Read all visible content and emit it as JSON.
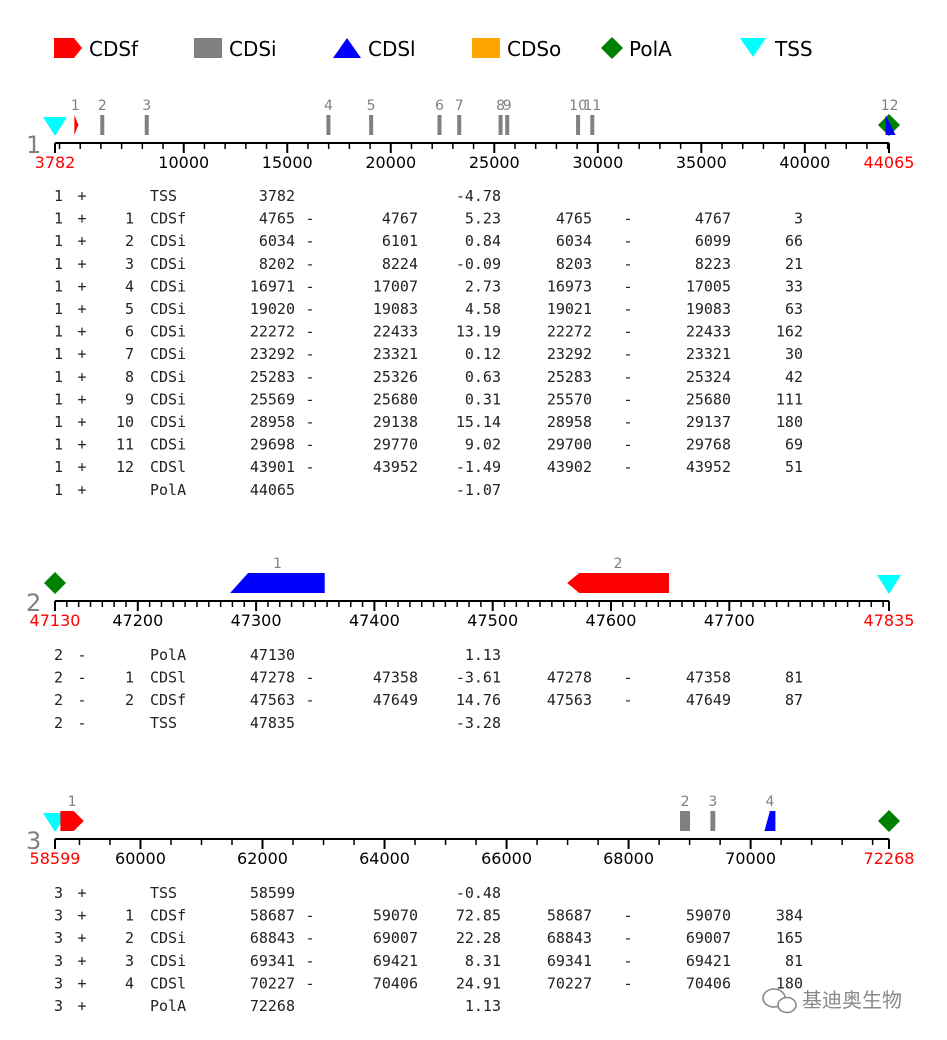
{
  "legend": [
    {
      "label": "CDSf",
      "icon": "cdsf-arrow-icon",
      "color": "#ff0000"
    },
    {
      "label": "CDSi",
      "icon": "cdsi-square-icon",
      "color": "#808080"
    },
    {
      "label": "CDSl",
      "icon": "cdsl-triangle-icon",
      "color": "#0000ff"
    },
    {
      "label": "CDSo",
      "icon": "cdso-square-icon",
      "color": "#ffa500"
    },
    {
      "label": "PolA",
      "icon": "pola-diamond-icon",
      "color": "#008000"
    },
    {
      "label": "TSS",
      "icon": "tss-triangle-icon",
      "color": "#00ffff"
    }
  ],
  "colors": {
    "tss": "#00ffff",
    "pola": "#008000",
    "cdsf": "#ff0000",
    "cdsi": "#808080",
    "cdsl": "#0000ff",
    "range_label": "#ff0000",
    "axis": "#000000",
    "track_id": "#808080"
  },
  "tracks": [
    {
      "id": "1",
      "start": 3782,
      "end": 44065,
      "start_label": "3782",
      "end_label": "44065",
      "ticks": [
        10000,
        15000,
        20000,
        25000,
        30000,
        35000,
        40000
      ],
      "tick_labels": [
        "10000",
        "15000",
        "20000",
        "25000",
        "30000",
        "35000",
        "40000"
      ],
      "minor_step": 1000,
      "markers": [
        {
          "kind": "TSS",
          "pos": 3782
        },
        {
          "kind": "PolA",
          "pos": 44065
        }
      ],
      "features": [
        {
          "n": "1",
          "type": "CDSf",
          "start": 4765,
          "end": 4767
        },
        {
          "n": "2",
          "type": "CDSi",
          "start": 6034,
          "end": 6099
        },
        {
          "n": "3",
          "type": "CDSi",
          "start": 8203,
          "end": 8223
        },
        {
          "n": "4",
          "type": "CDSi",
          "start": 16973,
          "end": 17005
        },
        {
          "n": "5",
          "type": "CDSi",
          "start": 19021,
          "end": 19083
        },
        {
          "n": "6",
          "type": "CDSi",
          "start": 22272,
          "end": 22433
        },
        {
          "n": "7",
          "type": "CDSi",
          "start": 23292,
          "end": 23321
        },
        {
          "n": "8",
          "type": "CDSi",
          "start": 25283,
          "end": 25324
        },
        {
          "n": "9",
          "type": "CDSi",
          "start": 25570,
          "end": 25680
        },
        {
          "n": "10",
          "type": "CDSi",
          "start": 28958,
          "end": 29137
        },
        {
          "n": "11",
          "type": "CDSi",
          "start": 29700,
          "end": 29768
        },
        {
          "n": "12",
          "type": "CDSl",
          "start": 43902,
          "end": 43952
        }
      ],
      "rows": [
        [
          "1",
          "+",
          "",
          "TSS",
          "3782",
          "",
          "",
          "-4.78",
          "",
          "",
          "",
          ""
        ],
        [
          "1",
          "+",
          "1",
          "CDSf",
          "4765",
          "-",
          "4767",
          "5.23",
          "4765",
          "-",
          "4767",
          "3"
        ],
        [
          "1",
          "+",
          "2",
          "CDSi",
          "6034",
          "-",
          "6101",
          "0.84",
          "6034",
          "-",
          "6099",
          "66"
        ],
        [
          "1",
          "+",
          "3",
          "CDSi",
          "8202",
          "-",
          "8224",
          "-0.09",
          "8203",
          "-",
          "8223",
          "21"
        ],
        [
          "1",
          "+",
          "4",
          "CDSi",
          "16971",
          "-",
          "17007",
          "2.73",
          "16973",
          "-",
          "17005",
          "33"
        ],
        [
          "1",
          "+",
          "5",
          "CDSi",
          "19020",
          "-",
          "19083",
          "4.58",
          "19021",
          "-",
          "19083",
          "63"
        ],
        [
          "1",
          "+",
          "6",
          "CDSi",
          "22272",
          "-",
          "22433",
          "13.19",
          "22272",
          "-",
          "22433",
          "162"
        ],
        [
          "1",
          "+",
          "7",
          "CDSi",
          "23292",
          "-",
          "23321",
          "0.12",
          "23292",
          "-",
          "23321",
          "30"
        ],
        [
          "1",
          "+",
          "8",
          "CDSi",
          "25283",
          "-",
          "25326",
          "0.63",
          "25283",
          "-",
          "25324",
          "42"
        ],
        [
          "1",
          "+",
          "9",
          "CDSi",
          "25569",
          "-",
          "25680",
          "0.31",
          "25570",
          "-",
          "25680",
          "111"
        ],
        [
          "1",
          "+",
          "10",
          "CDSi",
          "28958",
          "-",
          "29138",
          "15.14",
          "28958",
          "-",
          "29137",
          "180"
        ],
        [
          "1",
          "+",
          "11",
          "CDSi",
          "29698",
          "-",
          "29770",
          "9.02",
          "29700",
          "-",
          "29768",
          "69"
        ],
        [
          "1",
          "+",
          "12",
          "CDSl",
          "43901",
          "-",
          "43952",
          "-1.49",
          "43902",
          "-",
          "43952",
          "51"
        ],
        [
          "1",
          "+",
          "",
          "PolA",
          "44065",
          "",
          "",
          "-1.07",
          "",
          "",
          "",
          ""
        ]
      ]
    },
    {
      "id": "2",
      "start": 47130,
      "end": 47835,
      "start_label": "47130",
      "end_label": "47835",
      "ticks": [
        47200,
        47300,
        47400,
        47500,
        47600,
        47700
      ],
      "tick_labels": [
        "47200",
        "47300",
        "47400",
        "47500",
        "47600",
        "47700"
      ],
      "minor_step": 10,
      "markers": [
        {
          "kind": "PolA",
          "pos": 47130
        },
        {
          "kind": "TSS",
          "pos": 47835
        }
      ],
      "features": [
        {
          "n": "1",
          "type": "CDSl",
          "start": 47278,
          "end": 47358
        },
        {
          "n": "2",
          "type": "CDSf",
          "start": 47563,
          "end": 47649,
          "reverse": true
        }
      ],
      "rows": [
        [
          "2",
          "-",
          "",
          "PolA",
          "47130",
          "",
          "",
          "1.13",
          "",
          "",
          "",
          ""
        ],
        [
          "2",
          "-",
          "1",
          "CDSl",
          "47278",
          "-",
          "47358",
          "-3.61",
          "47278",
          "-",
          "47358",
          "81"
        ],
        [
          "2",
          "-",
          "2",
          "CDSf",
          "47563",
          "-",
          "47649",
          "14.76",
          "47563",
          "-",
          "47649",
          "87"
        ],
        [
          "2",
          "-",
          "",
          "TSS",
          "47835",
          "",
          "",
          "-3.28",
          "",
          "",
          "",
          ""
        ]
      ]
    },
    {
      "id": "3",
      "start": 58599,
      "end": 72268,
      "start_label": "58599",
      "end_label": "72268",
      "ticks": [
        60000,
        62000,
        64000,
        66000,
        68000,
        70000
      ],
      "tick_labels": [
        "60000",
        "62000",
        "64000",
        "66000",
        "68000",
        "70000"
      ],
      "minor_step": 500,
      "markers": [
        {
          "kind": "TSS",
          "pos": 58599
        },
        {
          "kind": "PolA",
          "pos": 72268
        }
      ],
      "features": [
        {
          "n": "1",
          "type": "CDSf",
          "start": 58687,
          "end": 59070
        },
        {
          "n": "2",
          "type": "CDSi",
          "start": 68843,
          "end": 69007
        },
        {
          "n": "3",
          "type": "CDSi",
          "start": 69341,
          "end": 69421
        },
        {
          "n": "4",
          "type": "CDSl",
          "start": 70227,
          "end": 70406
        }
      ],
      "rows": [
        [
          "3",
          "+",
          "",
          "TSS",
          "58599",
          "",
          "",
          "-0.48",
          "",
          "",
          "",
          ""
        ],
        [
          "3",
          "+",
          "1",
          "CDSf",
          "58687",
          "-",
          "59070",
          "72.85",
          "58687",
          "-",
          "59070",
          "384"
        ],
        [
          "3",
          "+",
          "2",
          "CDSi",
          "68843",
          "-",
          "69007",
          "22.28",
          "68843",
          "-",
          "69007",
          "165"
        ],
        [
          "3",
          "+",
          "3",
          "CDSi",
          "69341",
          "-",
          "69421",
          "8.31",
          "69341",
          "-",
          "69421",
          "81"
        ],
        [
          "3",
          "+",
          "4",
          "CDSl",
          "70227",
          "-",
          "70406",
          "24.91",
          "70227",
          "-",
          "70406",
          "180"
        ],
        [
          "3",
          "+",
          "",
          "PolA",
          "72268",
          "",
          "",
          "1.13",
          "",
          "",
          "",
          ""
        ]
      ]
    }
  ],
  "watermark": {
    "text": "基迪奥生物",
    "icon": "wechat-icon"
  }
}
